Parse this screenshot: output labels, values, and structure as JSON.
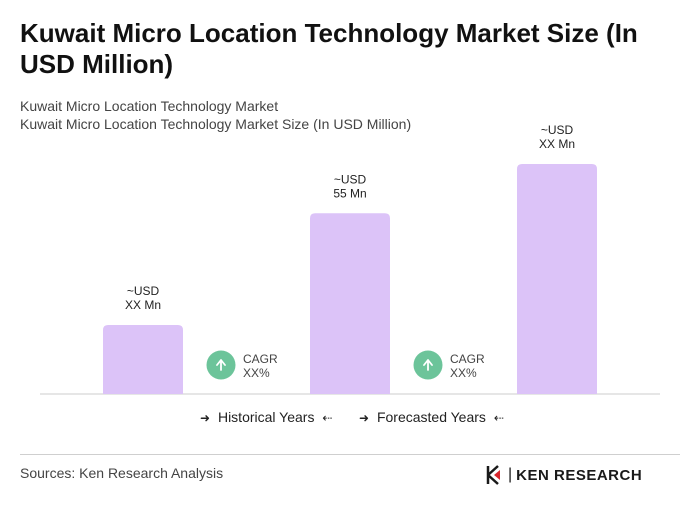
{
  "title": "Kuwait Micro Location Technology Market Size (In USD Million)",
  "subtitle_1": "Kuwait Micro Location Technology Market",
  "subtitle_2": "Kuwait Micro Location Technology Market Size (In USD Million)",
  "legend": {
    "historical": "Historical Years",
    "forecasted": "Forecasted Years"
  },
  "source": "Sources: Ken Research Analysis",
  "logo_text": "KEN RESEARCH",
  "colors": {
    "bar": "#dcc3f8",
    "cagr_circle": "#6cc49a",
    "axis": "#cccccc"
  },
  "chart_data": {
    "type": "bar",
    "categories": [
      "",
      "",
      ""
    ],
    "values": [
      21,
      55,
      70
    ],
    "bar_labels": [
      [
        "~USD",
        "XX Mn"
      ],
      [
        "~USD",
        "55 Mn"
      ],
      [
        "~USD",
        "XX Mn"
      ]
    ],
    "cagr_labels": [
      [
        "CAGR",
        "XX%"
      ],
      [
        "CAGR",
        "XX%"
      ]
    ],
    "title": "Kuwait Micro Location Technology Market Size (In USD Million)",
    "xlabel": "",
    "ylabel": "",
    "grid": false
  }
}
